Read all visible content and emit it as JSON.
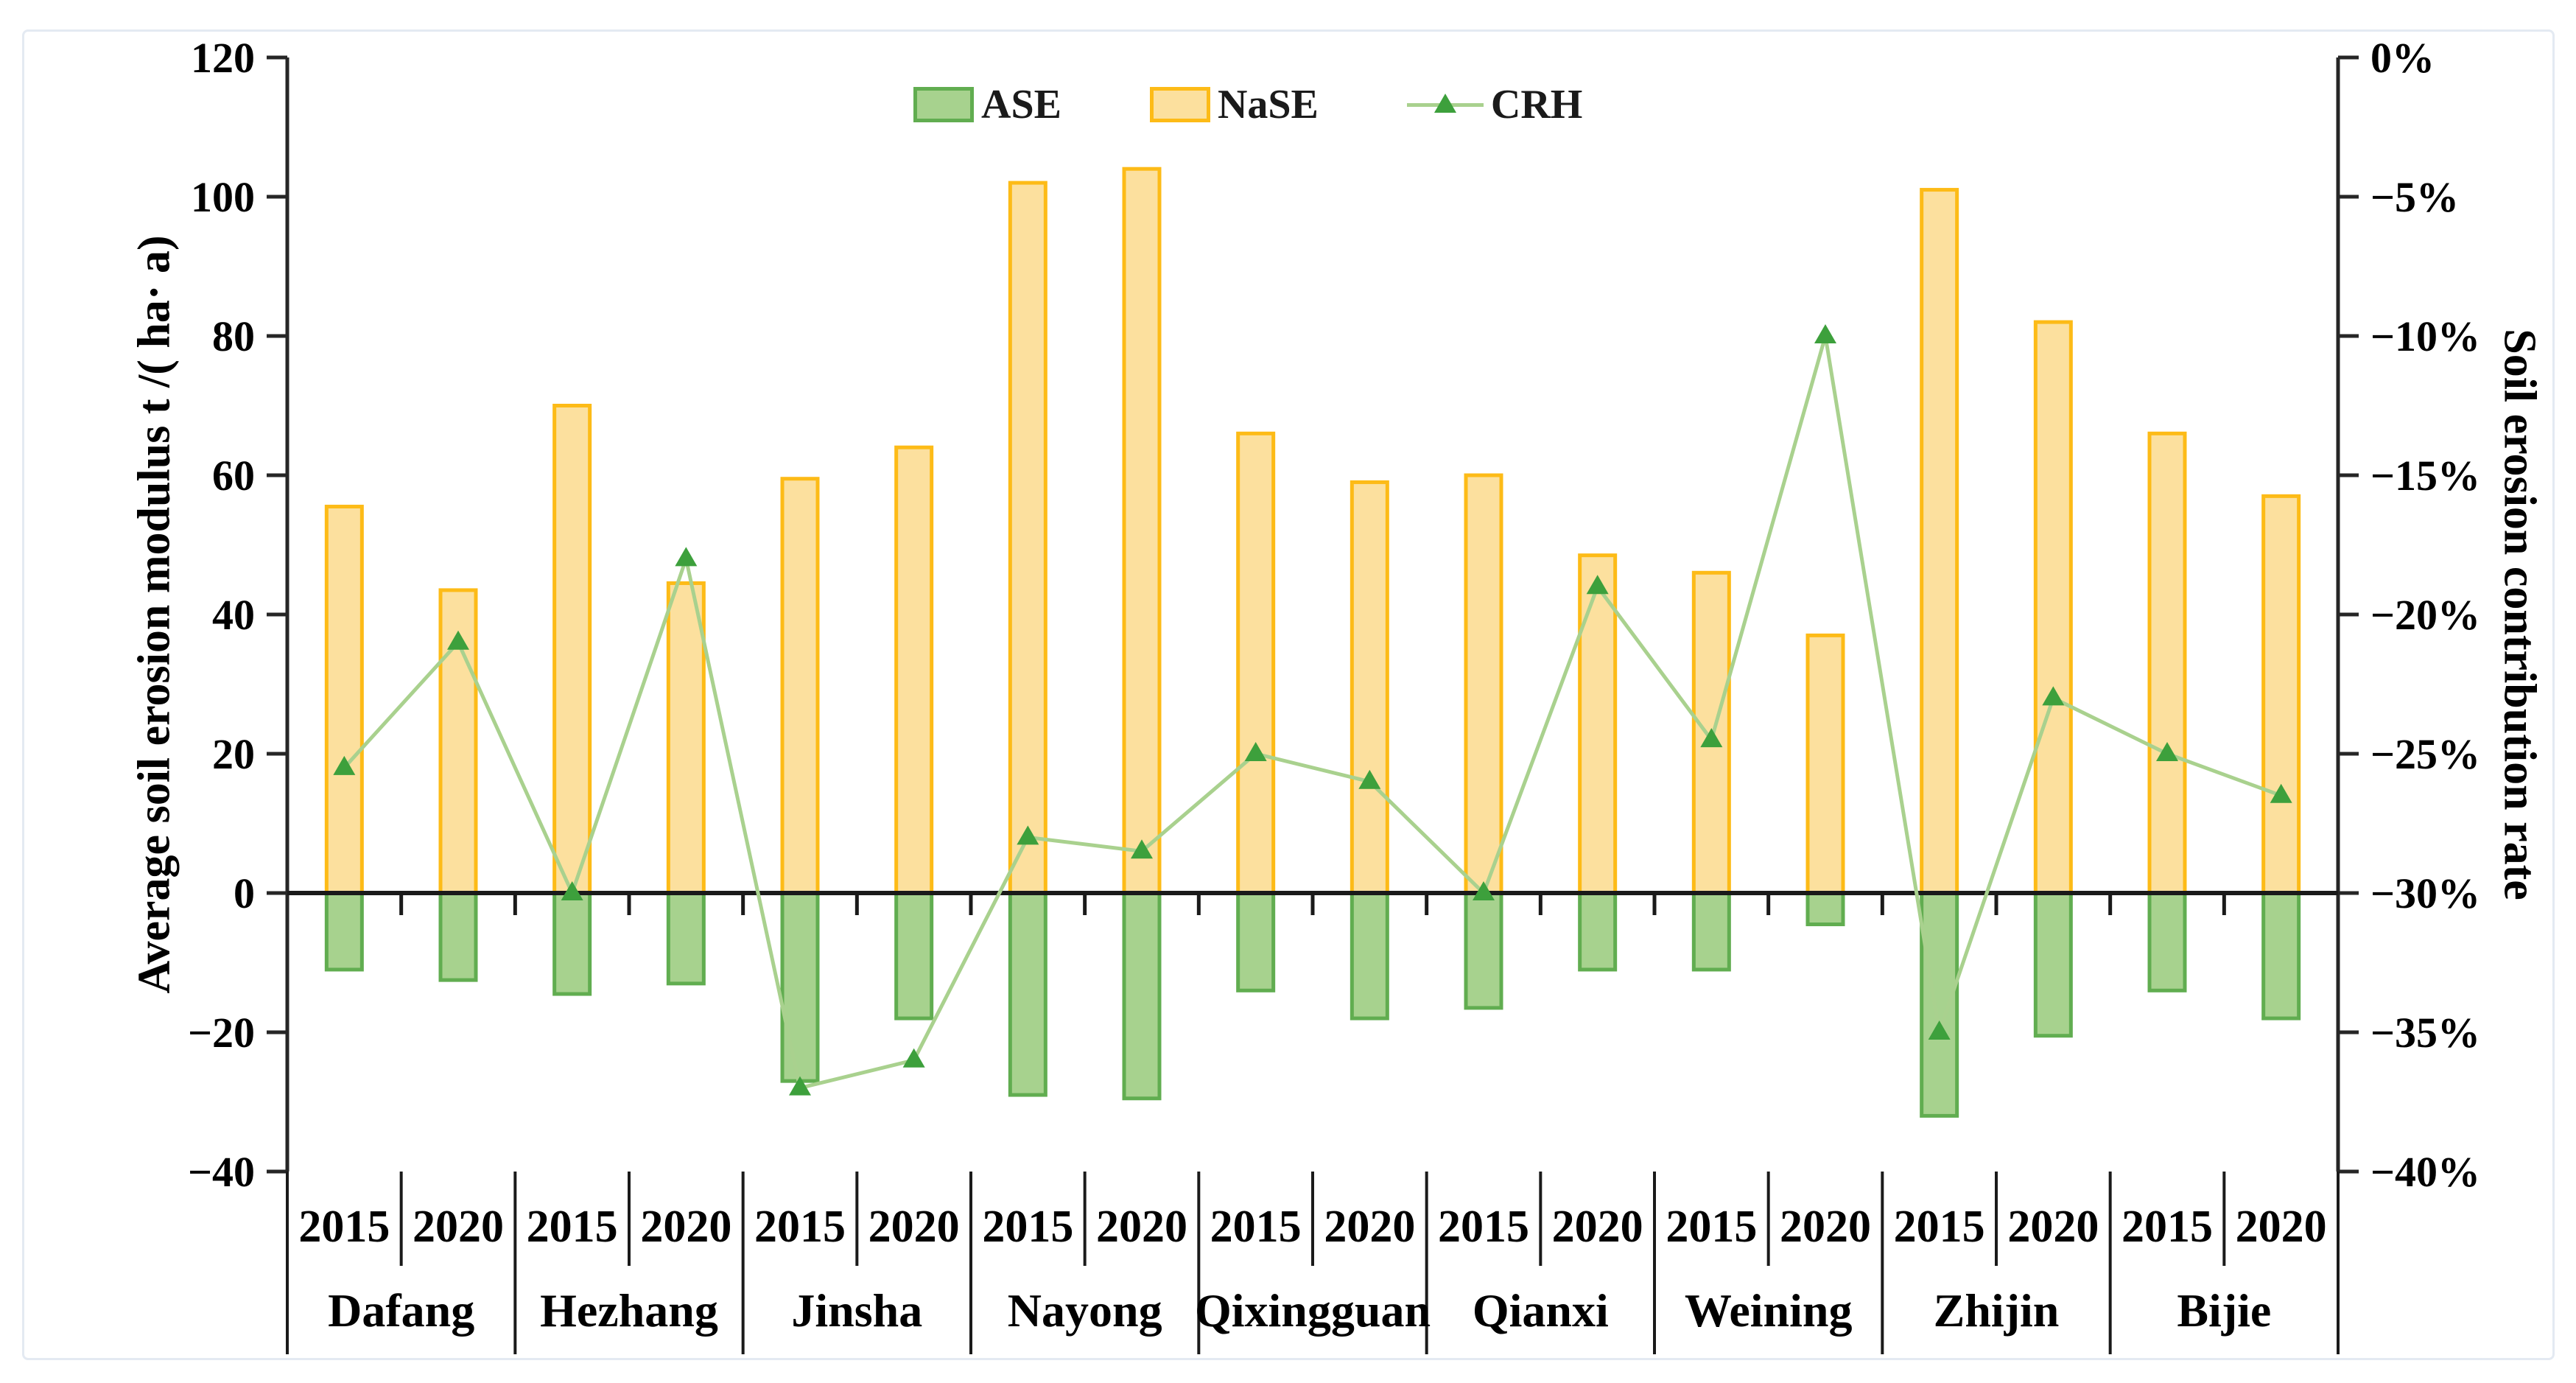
{
  "chart_data": {
    "type": "bar",
    "subtype": "grouped bars with overlaid line on secondary axis",
    "title": "",
    "left_axis": {
      "label": "Average soil erosion modulus t /( ha· a)",
      "min": -40,
      "max": 120,
      "tick_step": 20,
      "ticks": [
        120,
        100,
        80,
        60,
        40,
        20,
        0,
        -20,
        -40
      ],
      "tick_labels": [
        "120",
        "100",
        "80",
        "60",
        "40",
        "20",
        "0",
        "−20",
        "−40"
      ]
    },
    "right_axis": {
      "label": "Soil erosion contribution rate",
      "min_pct": -40,
      "max_pct": 0,
      "tick_step_pct": 5,
      "tick_labels": [
        "0%",
        "−5%",
        "−10%",
        "−15%",
        "−20%",
        "−25%",
        "−30%",
        "−35%",
        "−40%"
      ]
    },
    "counties": [
      "Dafang",
      "Hezhang",
      "Jinsha",
      "Nayong",
      "Qixingguan",
      "Qianxi",
      "Weining",
      "Zhijin",
      "Bijie"
    ],
    "years": [
      "2015",
      "2020"
    ],
    "category_year_labels": [
      "2015",
      "2020",
      "2015",
      "2020",
      "2015",
      "2020",
      "2015",
      "2020",
      "2015",
      "2020",
      "2015",
      "2020",
      "2015",
      "2020",
      "2015",
      "2020",
      "2015",
      "2020"
    ],
    "series": [
      {
        "name": "ASE",
        "type": "bar",
        "axis": "left",
        "fill": "#a7d28e",
        "stroke": "#61ad50",
        "values": [
          -11,
          -12.5,
          -14.5,
          -13,
          -27,
          -18,
          -29,
          -29.5,
          -14,
          -18,
          -16.5,
          -11,
          -11,
          -4.5,
          -32,
          -20.5,
          -14,
          -18
        ]
      },
      {
        "name": "NaSE",
        "type": "bar",
        "axis": "left",
        "fill": "#fce09e",
        "stroke": "#fdbb17",
        "values": [
          55.5,
          43.5,
          70,
          44.5,
          59.5,
          64,
          102,
          104,
          66,
          59,
          60,
          48.5,
          46,
          37,
          101,
          82,
          66,
          57
        ]
      },
      {
        "name": "CRH",
        "type": "line",
        "axis": "right",
        "line_color": "#a9d18e",
        "marker": "triangle-up",
        "marker_color": "#3da03c",
        "values_pct": [
          -25.5,
          -21,
          -30,
          -18,
          -37,
          -36,
          -28,
          -28.5,
          -25,
          -26,
          -30,
          -19,
          -24.5,
          -10,
          -35,
          -23,
          -25,
          -26.5
        ]
      }
    ],
    "layout": {
      "gridlines": false,
      "legend_position": "top-center",
      "zero_line": true,
      "axis_color": "#262626",
      "text_color": "#000000"
    }
  }
}
